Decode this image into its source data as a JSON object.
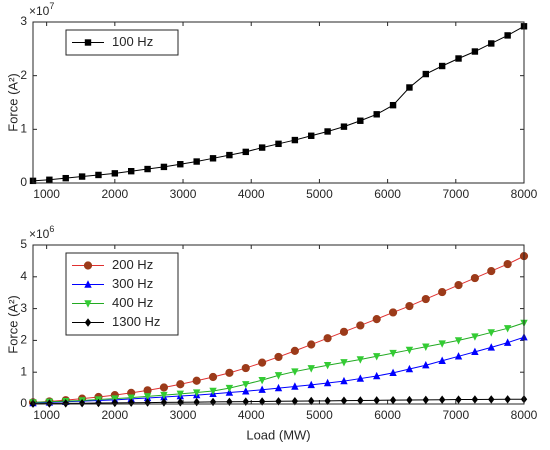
{
  "chart_data": [
    {
      "type": "line",
      "ylabel": "Force (A²)",
      "y_multiplier": {
        "base": "×10",
        "power": "7"
      },
      "xlim": [
        800,
        8000
      ],
      "xticks": [
        1000,
        2000,
        3000,
        4000,
        5000,
        6000,
        7000,
        8000
      ],
      "ylim": [
        0,
        30000000
      ],
      "yticks": [
        {
          "value": 0,
          "label": "0"
        },
        {
          "value": 10000000,
          "label": "1"
        },
        {
          "value": 20000000,
          "label": "2"
        },
        {
          "value": 30000000,
          "label": "3"
        }
      ],
      "legend": "upper left",
      "x": [
        800,
        1040,
        1280,
        1520,
        1760,
        2000,
        2240,
        2480,
        2720,
        2960,
        3200,
        3440,
        3680,
        3920,
        4160,
        4400,
        4640,
        4880,
        5120,
        5360,
        5600,
        5840,
        6080,
        6320,
        6560,
        6800,
        7040,
        7280,
        7520,
        7760,
        8000
      ],
      "series": [
        {
          "name": "100 Hz",
          "color": "#000000",
          "marker": "square",
          "values": [
            400000,
            600000,
            900000,
            1200000,
            1500000,
            1800000,
            2200000,
            2600000,
            3000000,
            3500000,
            4000000,
            4600000,
            5200000,
            5800000,
            6600000,
            7300000,
            8000000,
            8800000,
            9600000,
            10500000,
            11600000,
            12800000,
            14500000,
            17800000,
            20300000,
            21800000,
            23200000,
            24500000,
            26000000,
            27500000,
            29200000
          ]
        }
      ]
    },
    {
      "type": "line",
      "ylabel": "Force (A²)",
      "xlabel": "Load (MW)",
      "y_multiplier": {
        "base": "×10",
        "power": "6"
      },
      "xlim": [
        800,
        8000
      ],
      "xticks": [
        1000,
        2000,
        3000,
        4000,
        5000,
        6000,
        7000,
        8000
      ],
      "ylim": [
        0,
        5000000
      ],
      "yticks": [
        {
          "value": 0,
          "label": "0"
        },
        {
          "value": 1000000,
          "label": "1"
        },
        {
          "value": 2000000,
          "label": "2"
        },
        {
          "value": 3000000,
          "label": "3"
        },
        {
          "value": 4000000,
          "label": "4"
        },
        {
          "value": 5000000,
          "label": "5"
        }
      ],
      "legend": "upper left",
      "x": [
        800,
        1040,
        1280,
        1520,
        1760,
        2000,
        2240,
        2480,
        2720,
        2960,
        3200,
        3440,
        3680,
        3920,
        4160,
        4400,
        4640,
        4880,
        5120,
        5360,
        5600,
        5840,
        6080,
        6320,
        6560,
        6800,
        7040,
        7280,
        7520,
        7760,
        8000
      ],
      "series": [
        {
          "name": "200 Hz",
          "color": "#e03030",
          "marker_color": "#9c3b1a",
          "marker": "circle",
          "values": [
            50000,
            80000,
            120000,
            170000,
            220000,
            280000,
            350000,
            430000,
            520000,
            620000,
            730000,
            850000,
            980000,
            1130000,
            1300000,
            1480000,
            1670000,
            1870000,
            2070000,
            2270000,
            2470000,
            2670000,
            2880000,
            3080000,
            3300000,
            3520000,
            3740000,
            3960000,
            4180000,
            4400000,
            4650000
          ]
        },
        {
          "name": "300 Hz",
          "color": "#0000ff",
          "marker": "triangle-up",
          "values": [
            30000,
            50000,
            70000,
            90000,
            110000,
            130000,
            160000,
            190000,
            220000,
            250000,
            280000,
            320000,
            360000,
            400000,
            450000,
            500000,
            550000,
            600000,
            660000,
            720000,
            800000,
            880000,
            980000,
            1100000,
            1220000,
            1360000,
            1500000,
            1640000,
            1780000,
            1930000,
            2100000
          ]
        },
        {
          "name": "400 Hz",
          "color": "#22aa22",
          "marker_color": "#33cc33",
          "marker": "triangle-down",
          "values": [
            50000,
            70000,
            90000,
            110000,
            140000,
            170000,
            200000,
            240000,
            280000,
            320000,
            360000,
            410000,
            500000,
            620000,
            750000,
            900000,
            1020000,
            1120000,
            1220000,
            1310000,
            1400000,
            1500000,
            1600000,
            1700000,
            1800000,
            1900000,
            2000000,
            2120000,
            2250000,
            2380000,
            2550000
          ]
        },
        {
          "name": "1300 Hz",
          "color": "#000000",
          "marker": "diamond",
          "values": [
            10000,
            15000,
            20000,
            25000,
            30000,
            35000,
            40000,
            45000,
            50000,
            55000,
            60000,
            65000,
            70000,
            75000,
            80000,
            85000,
            90000,
            95000,
            100000,
            105000,
            110000,
            115000,
            120000,
            125000,
            130000,
            135000,
            140000,
            142000,
            145000,
            148000,
            150000
          ]
        }
      ]
    }
  ]
}
